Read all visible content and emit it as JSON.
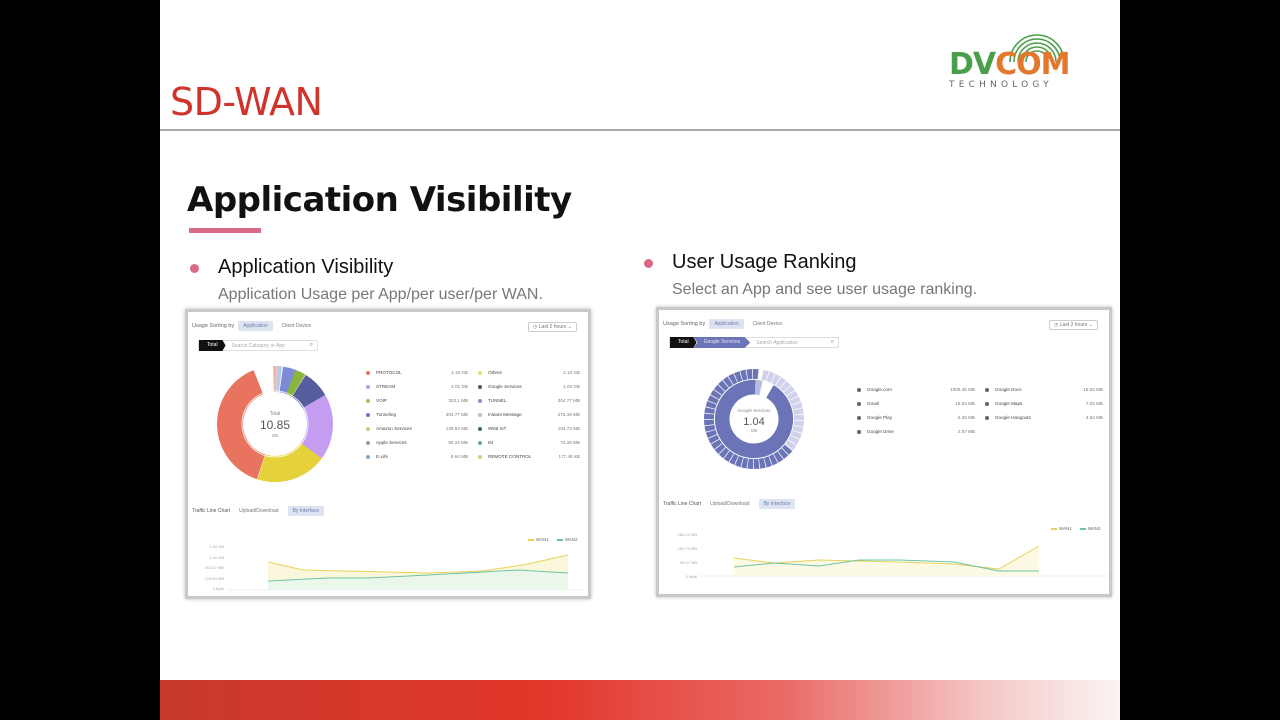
{
  "slide": {
    "section_title": "SD-WAN",
    "logo": {
      "primary_left": "DV",
      "primary_right": "COM",
      "secondary": "TECHNOLOGY",
      "color_left": "#4aa04a",
      "color_right": "#e2772e"
    },
    "main_title": "Application Visibility",
    "accent_color": "#d96a86",
    "header_color": "#d0332c"
  },
  "left_panel": {
    "bullet": "Application Visibility",
    "description": "Application Usage per App/per user/per WAN.",
    "screenshot": {
      "toolbar": {
        "label": "Usage Sorting by",
        "tabs": [
          "Application",
          "Client Device"
        ],
        "active_tab": 0
      },
      "time_select": "Last 2 hours",
      "breadcrumb": {
        "root": "Total",
        "search_placeholder": "Search Category or App"
      },
      "donut": {
        "center_label": "Total",
        "center_value": "10.85",
        "center_unit": "GB"
      },
      "legend_left": [
        {
          "name": "PROTOCOL",
          "value": "4.19 GB",
          "color": "#e8735f"
        },
        {
          "name": "STREAM",
          "value": "2.01 GB",
          "color": "#a9a4e8"
        },
        {
          "name": "VOIP",
          "value": "323.1 MB",
          "color": "#a6c04a"
        },
        {
          "name": "Tunneling",
          "value": "304.77 MB",
          "color": "#6c74b8"
        },
        {
          "name": "Amazon Services",
          "value": "148.53 MB",
          "color": "#c9d27a"
        },
        {
          "name": "Apple Services",
          "value": "90.24 MB",
          "color": "#9a9a9a"
        },
        {
          "name": "E-Life",
          "value": "8.64 MB",
          "color": "#7fa8c9"
        }
      ],
      "legend_right": [
        {
          "name": "Others",
          "value": "2.13 GB",
          "color": "#e5dc6a"
        },
        {
          "name": "Google Services",
          "value": "1.04 GB",
          "color": "#555"
        },
        {
          "name": "TUNNEL",
          "value": "304.77 MB",
          "color": "#8b8fc2"
        },
        {
          "name": "Instant Message",
          "value": "275.19 MB",
          "color": "#c4b8c4"
        },
        {
          "name": "WEB IoT",
          "value": "104.73 MB",
          "color": "#3f6b5c"
        },
        {
          "name": "IM",
          "value": "74.25 MB",
          "color": "#6aa89a"
        },
        {
          "name": "REMOTE CONTROL",
          "value": "177.46 KB",
          "color": "#d8cd7a"
        }
      ],
      "line_chart": {
        "label": "Traffic Line Chart",
        "tabs": [
          "Upload/Download",
          "By Interface"
        ],
        "active_tab": 1,
        "series_names": [
          "WAN1",
          "WAN2"
        ],
        "y_ticks": [
          "1.86 GB",
          "1.40 GB",
          "953.67 MB",
          "476.84 MB",
          "0 Byte"
        ]
      }
    }
  },
  "right_panel": {
    "bullet": "User Usage Ranking",
    "description": "Select an App and see user usage ranking.",
    "screenshot": {
      "toolbar": {
        "label": "Usage Sorting by",
        "tabs": [
          "Application",
          "Client Device"
        ],
        "active_tab": 0
      },
      "time_select": "Last 2 hours",
      "breadcrumb": {
        "root": "Total",
        "current": "Google Services",
        "search_placeholder": "Search Application"
      },
      "donut": {
        "center_label": "Google Services",
        "center_value": "1.04",
        "center_unit": "GB"
      },
      "legend_left": [
        {
          "name": "Google.com",
          "value": "1005.45 MB"
        },
        {
          "name": "Gmail",
          "value": "18.53 MB"
        },
        {
          "name": "Google Play",
          "value": "5.26 MB"
        },
        {
          "name": "Google Drive",
          "value": "2.57 MB"
        }
      ],
      "legend_right": [
        {
          "name": "Google Docs",
          "value": "18.53 MB"
        },
        {
          "name": "Google Maps",
          "value": "7.02 MB"
        },
        {
          "name": "Google Hangouts",
          "value": "3.84 MB"
        }
      ],
      "line_chart": {
        "label": "Traffic Line Chart",
        "tabs": [
          "Upload/Download",
          "By Interface"
        ],
        "active_tab": 1,
        "series_names": [
          "WAN1",
          "WAN2"
        ],
        "y_ticks": [
          "286.10 MB",
          "190.73 MB",
          "95.37 MB",
          "0 Byte"
        ]
      }
    }
  }
}
